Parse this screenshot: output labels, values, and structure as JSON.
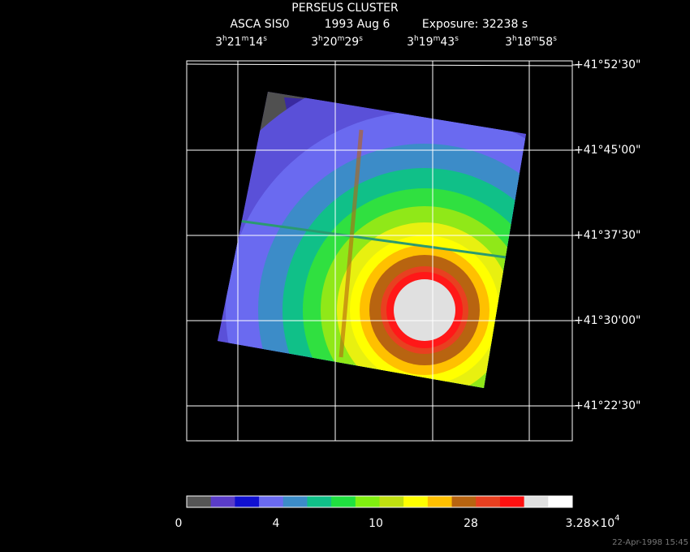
{
  "header": {
    "title": "PERSEUS CLUSTER",
    "instrument": "ASCA SIS0",
    "date": "1993 Aug  6",
    "exposure": "Exposure: 32238 s"
  },
  "ra_units": [
    "h",
    "m",
    "s"
  ],
  "ra_labels": [
    {
      "hours": "3",
      "minutes": "21",
      "seconds": "14"
    },
    {
      "hours": "3",
      "minutes": "20",
      "seconds": "29"
    },
    {
      "hours": "3",
      "minutes": "19",
      "seconds": "43"
    },
    {
      "hours": "3",
      "minutes": "18",
      "seconds": "58"
    }
  ],
  "dec_labels": [
    "+41°52'30\"",
    "+41°45'00\"",
    "+41°37'30\"",
    "+41°30'00\"",
    "+41°22'30\""
  ],
  "colorbar": {
    "colors": [
      "#555555",
      "#5a3cc8",
      "#1010d0",
      "#6a6af0",
      "#3c8cc8",
      "#10c088",
      "#20e040",
      "#80f010",
      "#c0e010",
      "#ffff00",
      "#ffc000",
      "#b86410",
      "#e84020",
      "#ff1010",
      "#e0e0e0",
      "#ffffff"
    ],
    "labels": [
      "0",
      "4",
      "10",
      "28"
    ],
    "max_label": {
      "mantissa": "3.28×10",
      "exponent": "4"
    }
  },
  "timestamp": "22-Apr-1998 15:45"
}
